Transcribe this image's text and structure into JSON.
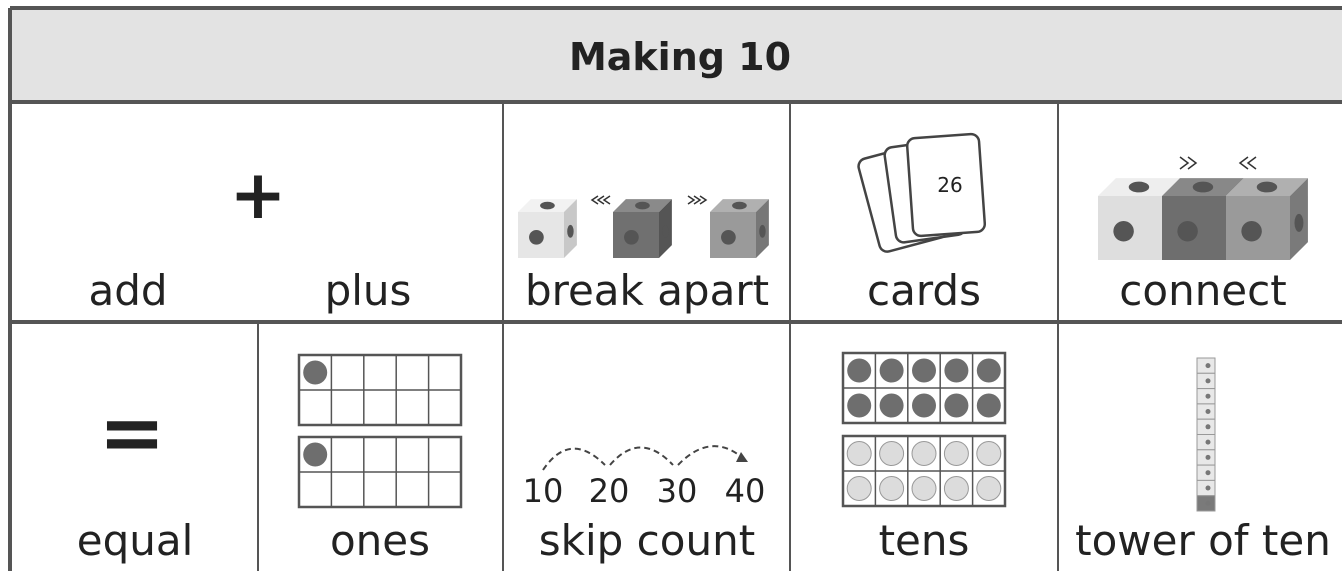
{
  "header": {
    "title": "Making 10"
  },
  "rows": [
    [
      {
        "symbol": "+",
        "labels": [
          "add",
          "plus"
        ]
      },
      {
        "label": "break apart"
      },
      {
        "label": "cards",
        "card_number": "26"
      },
      {
        "label": "connect"
      }
    ],
    [
      {
        "symbol": "=",
        "label": "equal"
      },
      {
        "label": "ones"
      },
      {
        "label": "skip count",
        "numbers": [
          "10",
          "20",
          "30",
          "40"
        ]
      },
      {
        "label": "tens"
      },
      {
        "label": "tower of ten"
      }
    ]
  ]
}
